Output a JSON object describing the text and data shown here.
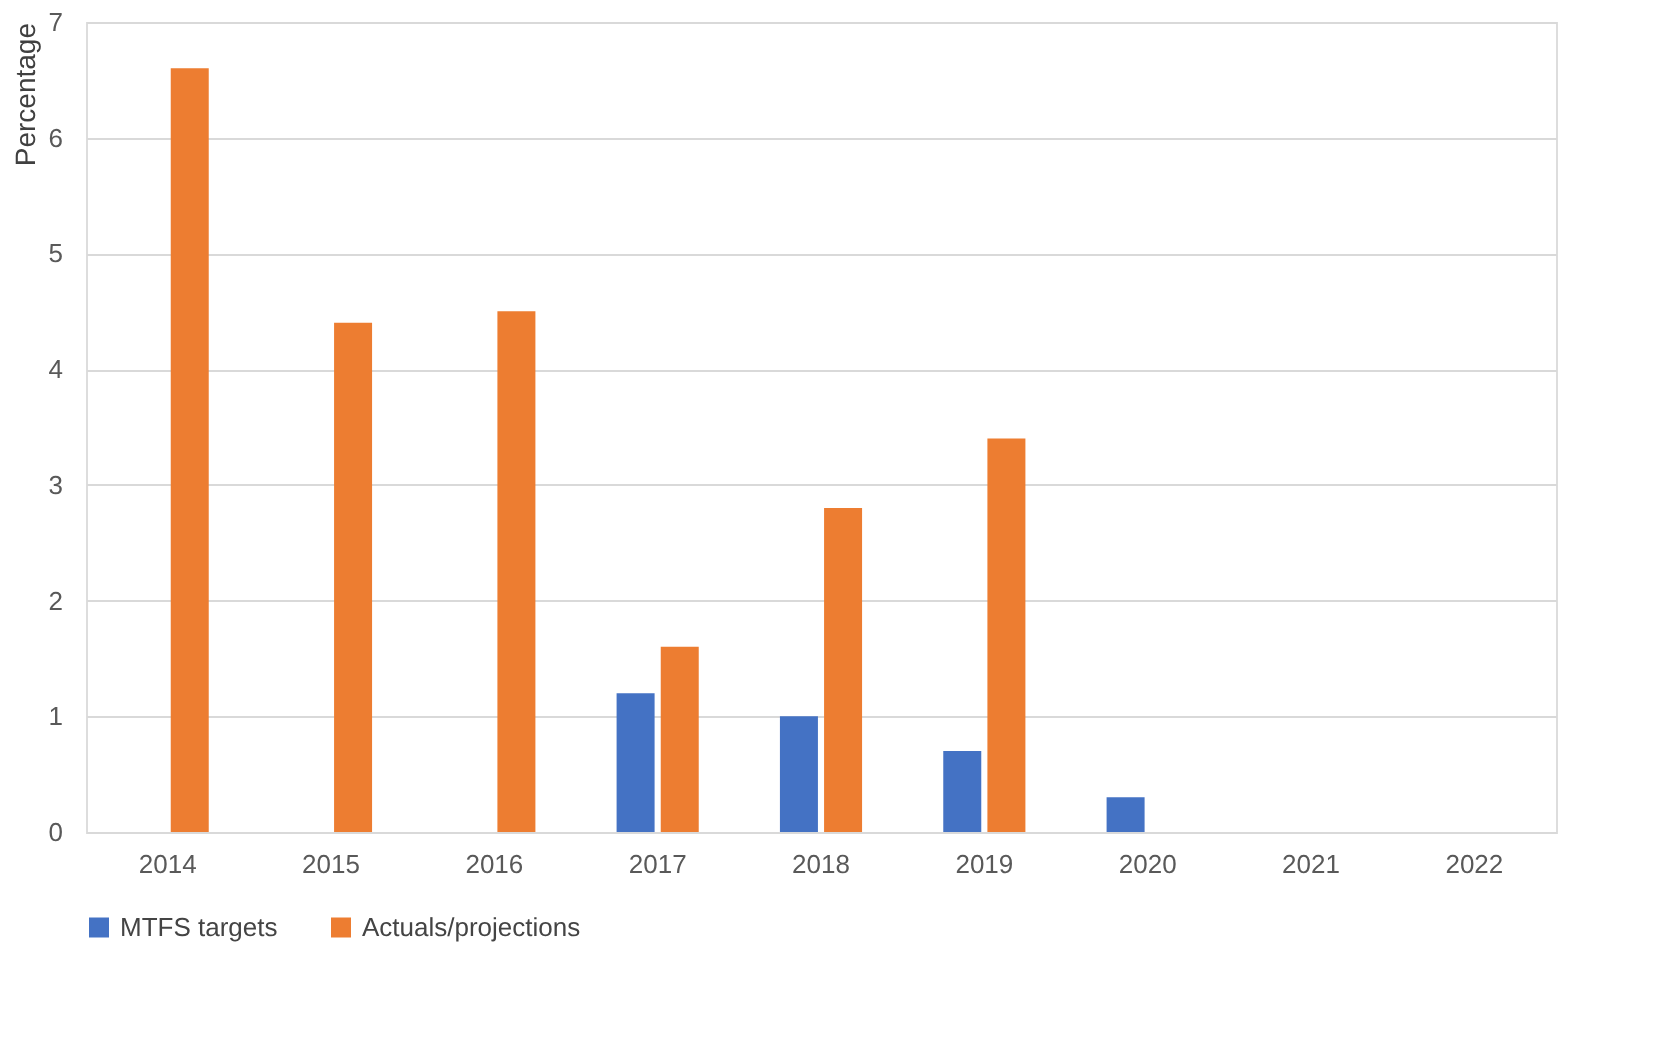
{
  "chart_data": {
    "type": "bar",
    "ylabel": "Percentage",
    "categories": [
      "2014",
      "2015",
      "2016",
      "2017",
      "2018",
      "2019",
      "2020",
      "2021",
      "2022"
    ],
    "series": [
      {
        "name": "MTFS targets",
        "color": "#4472c4",
        "values": [
          null,
          null,
          null,
          1.2,
          1.0,
          0.7,
          0.3,
          null,
          null
        ]
      },
      {
        "name": "Actuals/projections",
        "color": "#ed7d31",
        "values": [
          6.6,
          4.4,
          4.5,
          1.6,
          2.8,
          3.4,
          null,
          null,
          null
        ]
      }
    ],
    "ylim": [
      0,
      7
    ],
    "yticks": [
      0,
      1,
      2,
      3,
      4,
      5,
      6,
      7
    ],
    "grid": "y",
    "legend": "bottom"
  }
}
